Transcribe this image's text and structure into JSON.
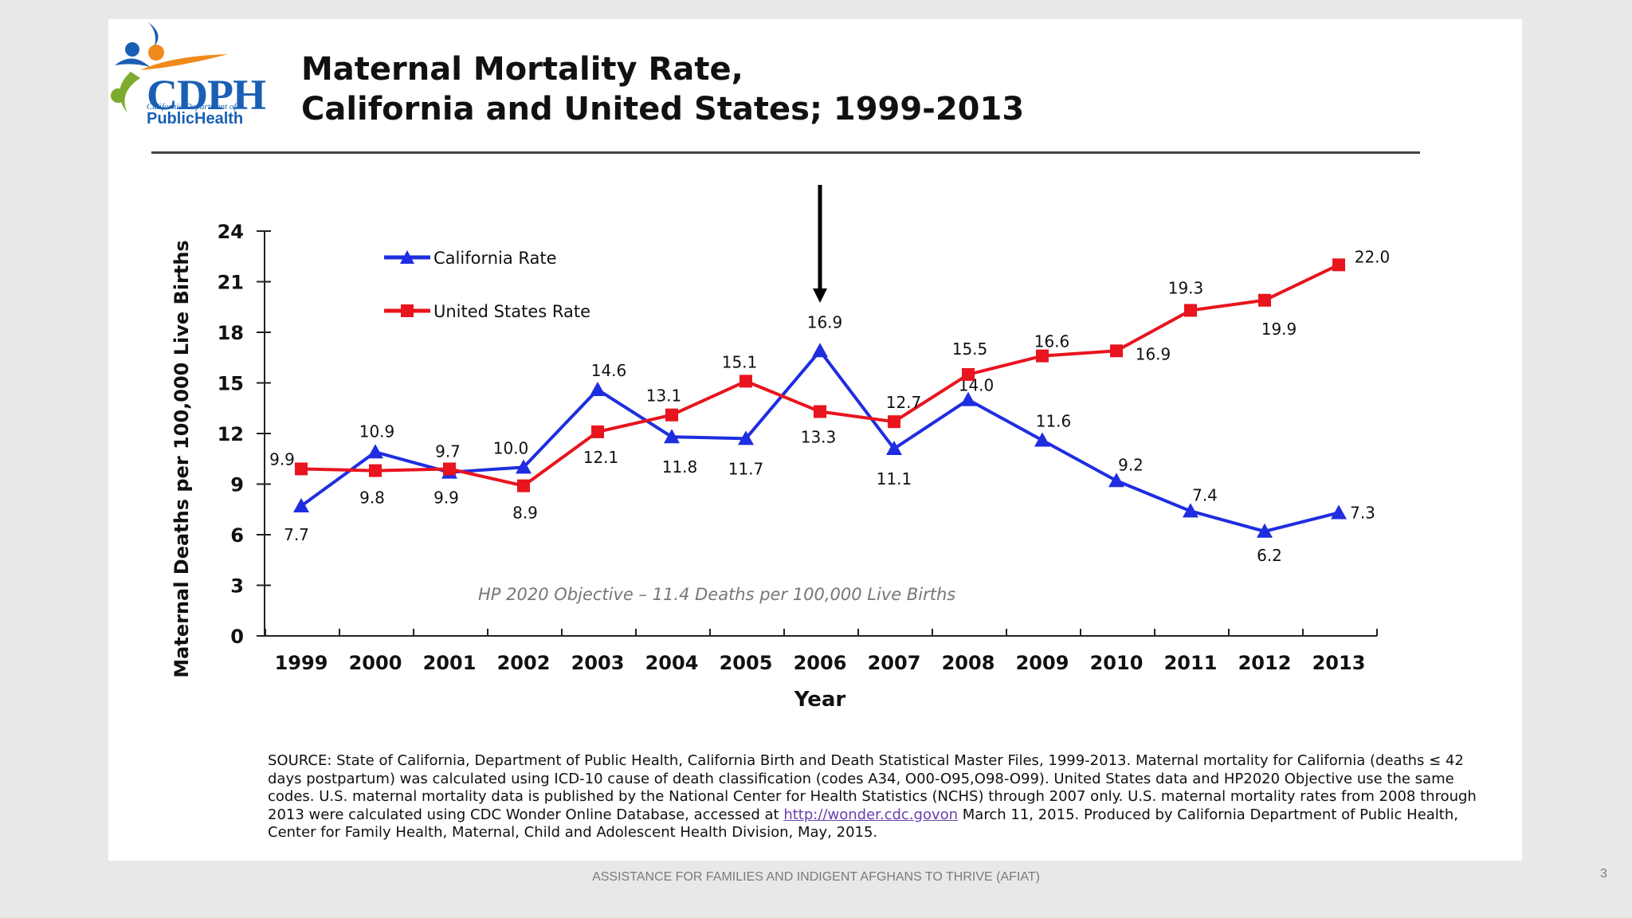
{
  "slide": {
    "logo_text": "CDPH",
    "logo_sub": "California Department of",
    "logo_ph": "PublicHealth",
    "title_line1": "Maternal Mortality Rate,",
    "title_line2": "California and United States; 1999-2013",
    "source_pre_link": "SOURCE: State of California, Department of Public Health, California Birth and Death Statistical Master Files, 1999-2013.  Maternal mortality for California (deaths ≤ 42 days postpartum) was calculated using ICD-10 cause of death classification (codes A34, O00-O95,O98-O99). United States data and HP2020 Objective use the same codes. U.S. maternal mortality data is published by the National Center for Health Statistics (NCHS) through 2007 only.  U.S. maternal mortality rates from 2008 through 2013 were calculated using CDC Wonder Online Database, accessed at ",
    "source_link": "http://wonder.cdc.govon",
    "source_post_link": " March 11, 2015. Produced by California Department of Public Health, Center for Family Health, Maternal, Child and Adolescent Health Division, May, 2015.",
    "footer": "ASSISTANCE FOR FAMILIES AND INDIGENT AFGHANS TO THRIVE (AFIAT)",
    "page_number": "3"
  },
  "colors": {
    "california": "#1f2de0",
    "united_states": "#e8141e",
    "annotation": "#777777"
  },
  "chart_data": {
    "type": "line",
    "categories": [
      "1999",
      "2000",
      "2001",
      "2002",
      "2003",
      "2004",
      "2005",
      "2006",
      "2007",
      "2008",
      "2009",
      "2010",
      "2011",
      "2012",
      "2013"
    ],
    "series": [
      {
        "name": "California Rate",
        "marker": "triangle",
        "values": [
          7.7,
          10.9,
          9.7,
          10.0,
          14.6,
          11.8,
          11.7,
          16.9,
          11.1,
          14.0,
          11.6,
          9.2,
          7.4,
          6.2,
          7.3
        ],
        "labels": [
          "7.7",
          "10.9",
          "9.7",
          "10.0",
          "14.6",
          "11.8",
          "11.7",
          "16.9",
          "11.1",
          "14.0",
          "11.6",
          "9.2",
          "7.4",
          "6.2",
          "7.3"
        ]
      },
      {
        "name": "United States Rate",
        "marker": "square",
        "values": [
          9.9,
          9.8,
          9.9,
          8.9,
          12.1,
          13.1,
          15.1,
          13.3,
          12.7,
          15.5,
          16.6,
          16.9,
          19.3,
          19.9,
          22.0
        ],
        "labels": [
          "9.9",
          "9.8",
          "9.9",
          "8.9",
          "12.1",
          "13.1",
          "15.1",
          "13.3",
          "12.7",
          "15.5",
          "16.6",
          "16.9",
          "19.3",
          "19.9",
          "22.0"
        ]
      }
    ],
    "ylim": [
      0,
      24
    ],
    "yticks": [
      "0",
      "3",
      "6",
      "9",
      "12",
      "15",
      "18",
      "21",
      "24"
    ],
    "xlabel": "Year",
    "ylabel": "Maternal Deaths per 100,000 Live Births",
    "annotation": "HP 2020 Objective – 11.4 Deaths per 100,000 Live Births",
    "arrow_at_category": "2006",
    "legend_position": "top-left"
  }
}
